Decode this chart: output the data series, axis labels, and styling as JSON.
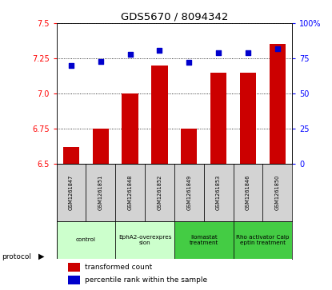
{
  "title": "GDS5670 / 8094342",
  "samples": [
    "GSM1261847",
    "GSM1261851",
    "GSM1261848",
    "GSM1261852",
    "GSM1261849",
    "GSM1261853",
    "GSM1261846",
    "GSM1261850"
  ],
  "transformed_counts": [
    6.62,
    6.75,
    7.0,
    7.2,
    6.75,
    7.15,
    7.15,
    7.35
  ],
  "percentile_ranks": [
    70,
    73,
    78,
    81,
    72,
    79,
    79,
    82
  ],
  "ylim_left": [
    6.5,
    7.5
  ],
  "ylim_right": [
    0,
    100
  ],
  "yticks_left": [
    6.5,
    6.75,
    7.0,
    7.25,
    7.5
  ],
  "yticks_right": [
    0,
    25,
    50,
    75,
    100
  ],
  "bar_color": "#cc0000",
  "dot_color": "#0000cc",
  "bar_width": 0.55,
  "protocols": [
    {
      "label": "control",
      "spans": [
        0,
        2
      ],
      "color": "#ccffcc"
    },
    {
      "label": "EphA2-overexpres\nsion",
      "spans": [
        2,
        4
      ],
      "color": "#ccffcc"
    },
    {
      "label": "Ilomastat\ntreatment",
      "spans": [
        4,
        6
      ],
      "color": "#44cc44"
    },
    {
      "label": "Rho activator Calp\neptin treatment",
      "spans": [
        6,
        8
      ],
      "color": "#44cc44"
    }
  ],
  "legend_items": [
    {
      "color": "#cc0000",
      "label": "transformed count"
    },
    {
      "color": "#0000cc",
      "label": "percentile rank within the sample"
    }
  ],
  "protocol_label": "protocol",
  "background_color": "#ffffff"
}
